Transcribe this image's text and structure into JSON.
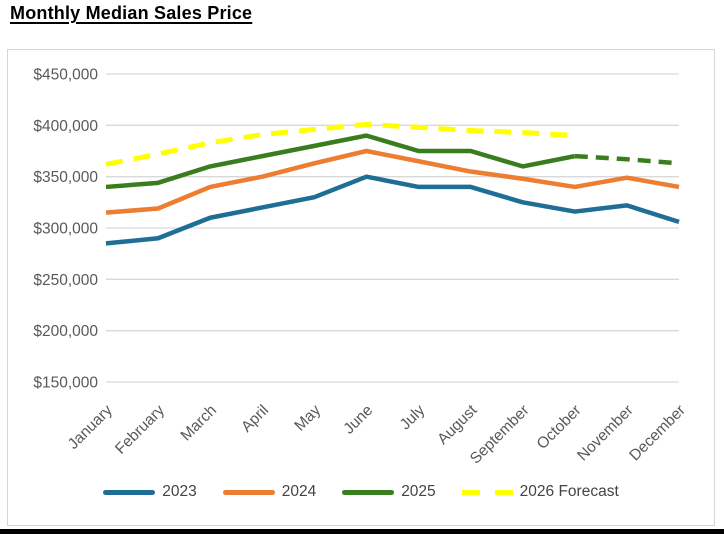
{
  "page_title": "Monthly Median Sales Price",
  "colors": {
    "series_2023": "#1F6E96",
    "series_2024": "#ED7D31",
    "series_2025": "#3A7D1E",
    "series_2026_forecast": "#FFFF00",
    "gridline": "#D9D9D9",
    "axis_text": "#595959",
    "legend_text": "#444444",
    "panel_border": "#D5D5D5"
  },
  "chart_data": {
    "type": "line",
    "title": "Monthly Median Sales Price",
    "categories": [
      "January",
      "February",
      "March",
      "April",
      "May",
      "June",
      "July",
      "August",
      "September",
      "October",
      "November",
      "December"
    ],
    "series": [
      {
        "name": "2023",
        "color": "#1F6E96",
        "style": "solid",
        "values": [
          285000,
          290000,
          310000,
          320000,
          330000,
          350000,
          340000,
          340000,
          325000,
          316000,
          322000,
          306000
        ]
      },
      {
        "name": "2024",
        "color": "#ED7D31",
        "style": "solid",
        "values": [
          315000,
          319000,
          340000,
          350000,
          363000,
          375000,
          365000,
          355000,
          348000,
          340000,
          349000,
          340000
        ]
      },
      {
        "name": "2025",
        "color": "#3A7D1E",
        "style": "solid_then_dashed",
        "dashed_from_index": 9,
        "values": [
          340000,
          344000,
          360000,
          370000,
          380000,
          390000,
          375000,
          375000,
          360000,
          370000,
          367000,
          363000
        ]
      },
      {
        "name": "2026 Forecast",
        "color": "#FFFF00",
        "style": "dashed",
        "values": [
          362000,
          372000,
          383000,
          391000,
          396000,
          401000,
          398000,
          395000,
          393000,
          390000,
          null,
          null
        ]
      }
    ],
    "ylim": [
      150000,
      450000
    ],
    "ytick_step": 50000,
    "yticks": [
      {
        "value": 450000,
        "label": "$450,000"
      },
      {
        "value": 400000,
        "label": "$400,000"
      },
      {
        "value": 350000,
        "label": "$350,000"
      },
      {
        "value": 300000,
        "label": "$300,000"
      },
      {
        "value": 250000,
        "label": "$250,000"
      },
      {
        "value": 200000,
        "label": "$200,000"
      },
      {
        "value": 150000,
        "label": "$150,000"
      }
    ],
    "grid": true,
    "legend_position": "bottom",
    "x_axis_label_rotation_deg": -45
  }
}
